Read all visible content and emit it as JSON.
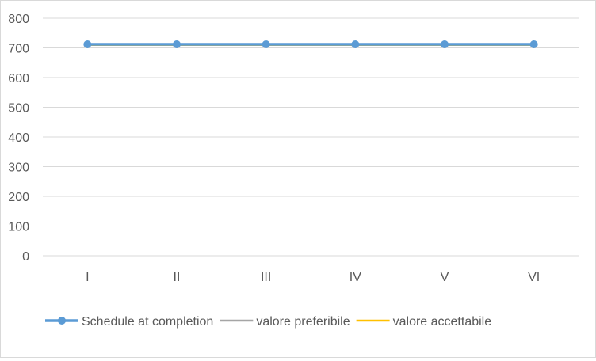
{
  "chart_data": {
    "type": "line",
    "categories": [
      "I",
      "II",
      "III",
      "IV",
      "V",
      "VI"
    ],
    "ylim": [
      0,
      800
    ],
    "yticks": [
      0,
      100,
      200,
      300,
      400,
      500,
      600,
      700,
      800
    ],
    "grid": true,
    "legend_position": "bottom",
    "title": "",
    "xlabel": "",
    "ylabel": "",
    "series": [
      {
        "name": "valore preferibile",
        "color": "#a5a5a5",
        "marker": false,
        "values": [
          712,
          712,
          712,
          712,
          712,
          712
        ]
      },
      {
        "name": "valore accettabile",
        "color": "#ffc000",
        "marker": false,
        "values": [
          710,
          710,
          710,
          710,
          710,
          710
        ]
      },
      {
        "name": "Schedule at completion",
        "color": "#5b9bd5",
        "marker": true,
        "values": [
          712,
          712,
          712,
          712,
          712,
          712
        ]
      }
    ],
    "legend_order": [
      "Schedule at completion",
      "valore preferibile",
      "valore accettabile"
    ]
  }
}
